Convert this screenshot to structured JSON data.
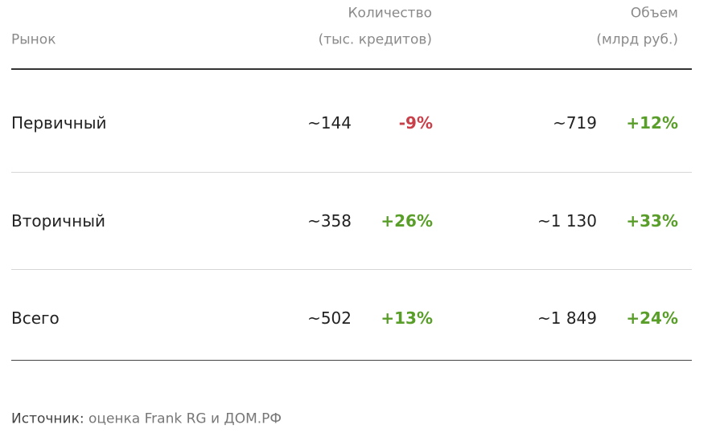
{
  "table": {
    "header": {
      "market": "Рынок",
      "count": [
        "Количество",
        "(тыс. кредитов)"
      ],
      "volume": [
        "Объем",
        "(млрд руб.)"
      ]
    },
    "rows": [
      {
        "market": "Первичный",
        "count": "~144",
        "count_change": "-9%",
        "volume": "~719",
        "volume_change": "+12%"
      },
      {
        "market": "Вторичный",
        "count": "~358",
        "count_change": "+26%",
        "volume": "~1 130",
        "volume_change": "+33%"
      },
      {
        "market": "Всего",
        "count": "~502",
        "count_change": "+13%",
        "volume": "~1 849",
        "volume_change": "+24%"
      }
    ]
  },
  "source": {
    "label": "Источник:",
    "text": "оценка Frank RG и ДОМ.РФ"
  }
}
